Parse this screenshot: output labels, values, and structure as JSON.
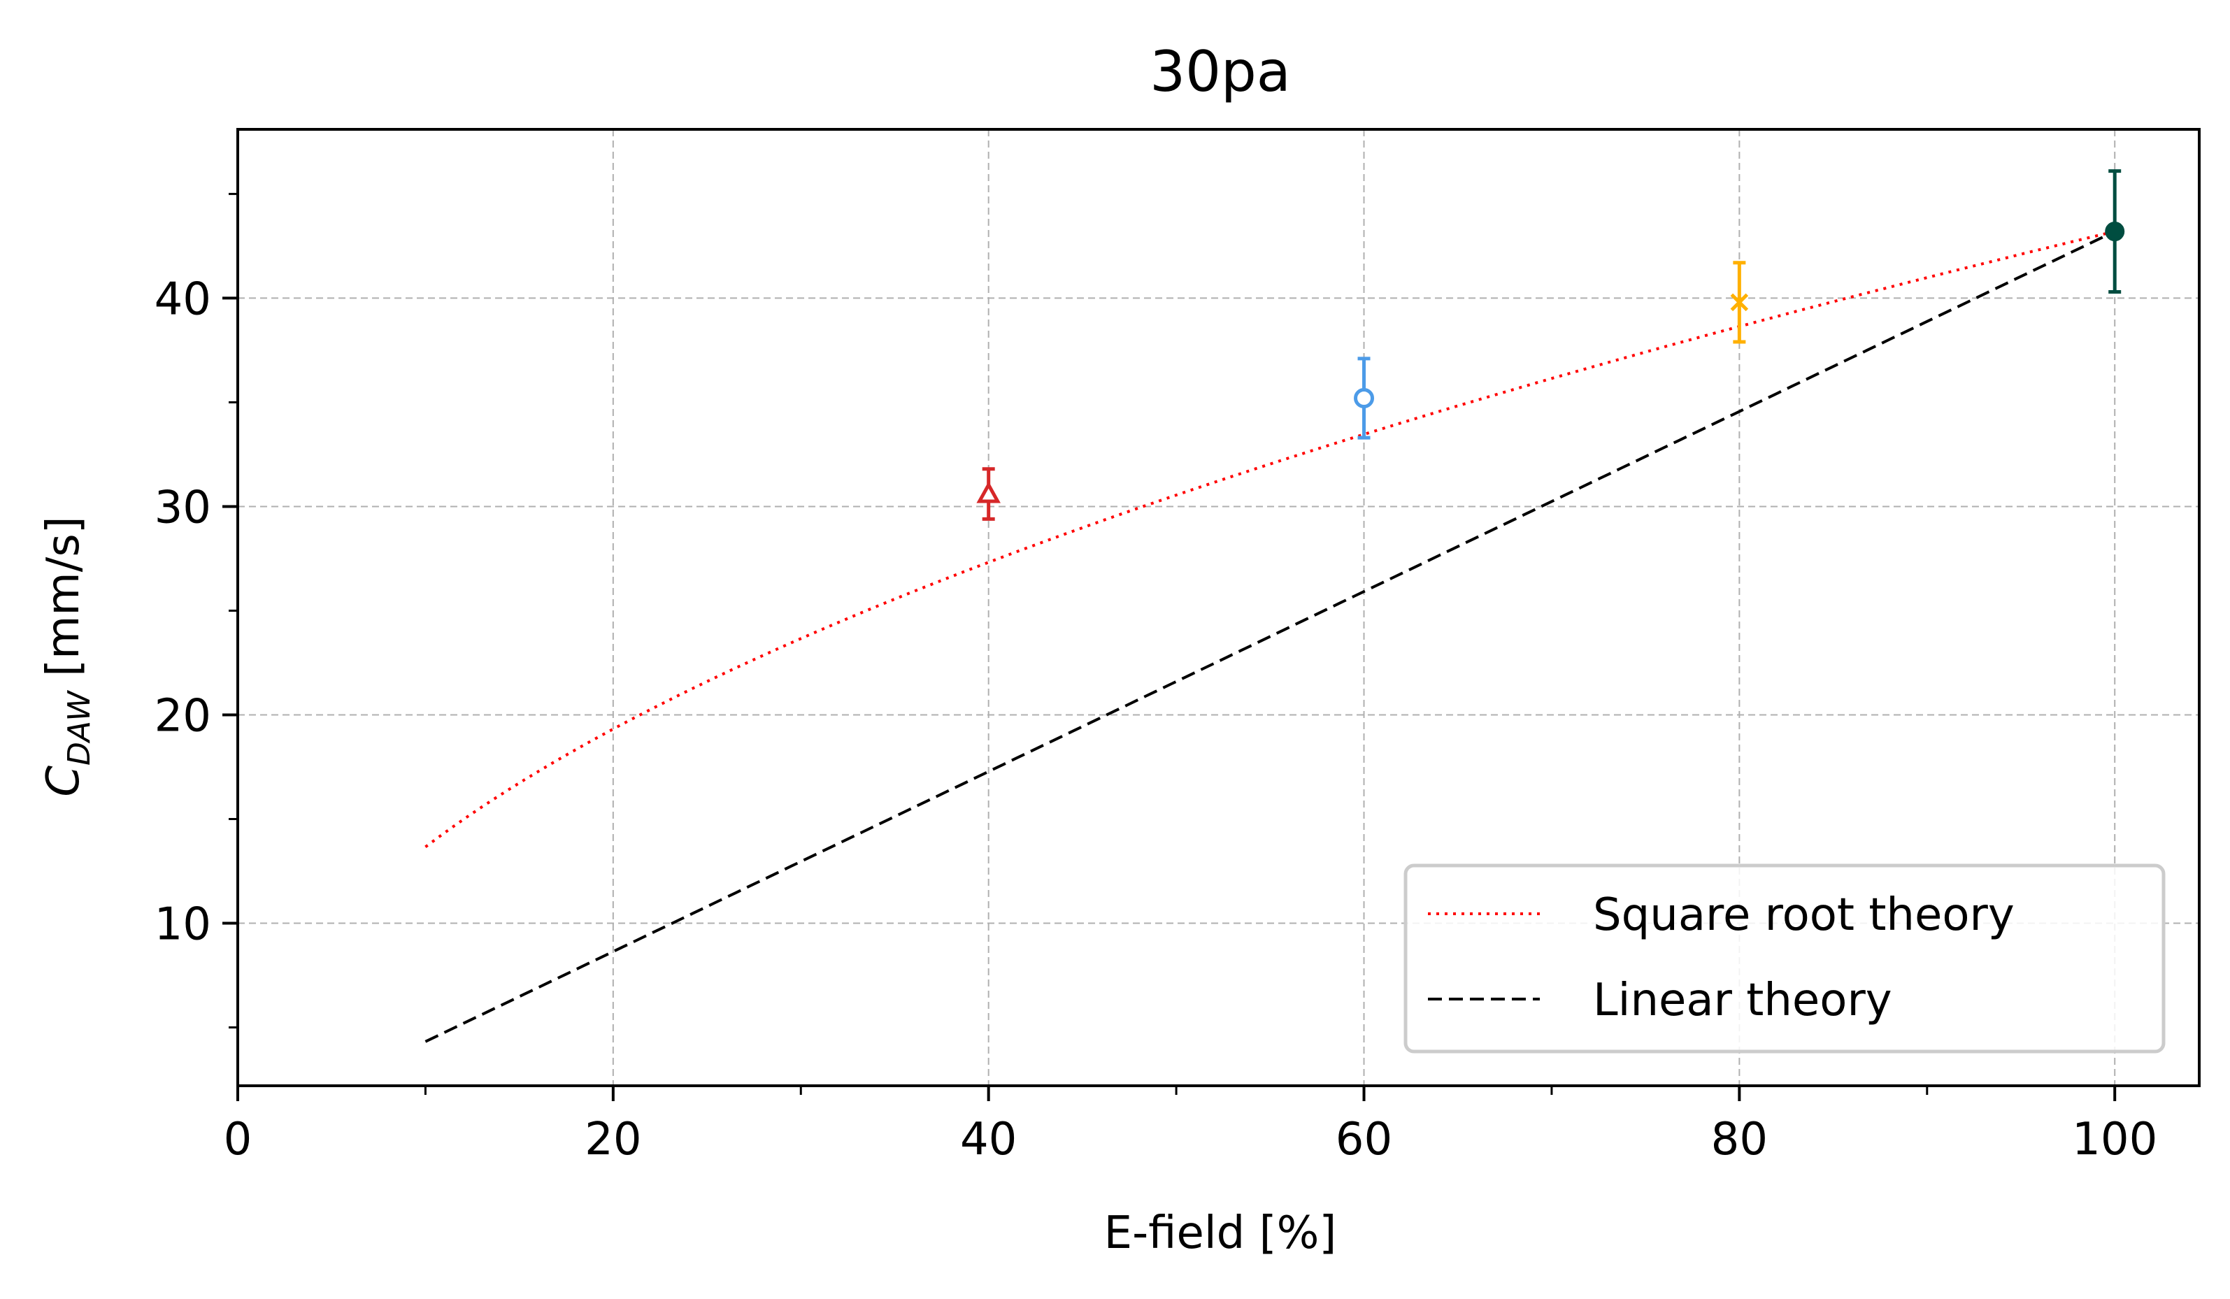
{
  "chart_data": {
    "type": "scatter",
    "title": "30pa",
    "xlabel": "E-field [%]",
    "ylabel": {
      "main": "C",
      "subscript": "DAW",
      "units": " [mm/s]"
    },
    "xlim": [
      0,
      104.5
    ],
    "ylim": [
      2.2,
      48.1
    ],
    "xticks": [
      0,
      20,
      40,
      60,
      80,
      100
    ],
    "yticks": [
      10,
      20,
      30,
      40
    ],
    "xminor": [
      10,
      30,
      50,
      70,
      90
    ],
    "yminor": [
      5,
      15,
      25,
      35,
      45
    ],
    "grid": true,
    "legend_position": "lower right",
    "series": [
      {
        "name": "Square root theory",
        "type": "line",
        "style": "dotted",
        "color": "#ff0000",
        "function": "sqrt",
        "x_range": [
          10,
          100
        ],
        "endpoint": [
          100,
          43.2
        ]
      },
      {
        "name": "Linear theory",
        "type": "line",
        "style": "dashed",
        "color": "#000000",
        "function": "linear",
        "x_range": [
          10,
          100
        ],
        "endpoint": [
          100,
          43.2
        ]
      }
    ],
    "points": [
      {
        "x": 40,
        "y": 30.6,
        "err": 1.2,
        "marker": "triangle-open",
        "color": "#d62728"
      },
      {
        "x": 60,
        "y": 35.2,
        "err": 1.9,
        "marker": "circle-open",
        "color": "#4c9be8"
      },
      {
        "x": 80,
        "y": 39.8,
        "err": 1.9,
        "marker": "x",
        "color": "#ffb000"
      },
      {
        "x": 100,
        "y": 43.2,
        "err": 2.9,
        "marker": "circle-filled",
        "color": "#004d40"
      }
    ]
  }
}
